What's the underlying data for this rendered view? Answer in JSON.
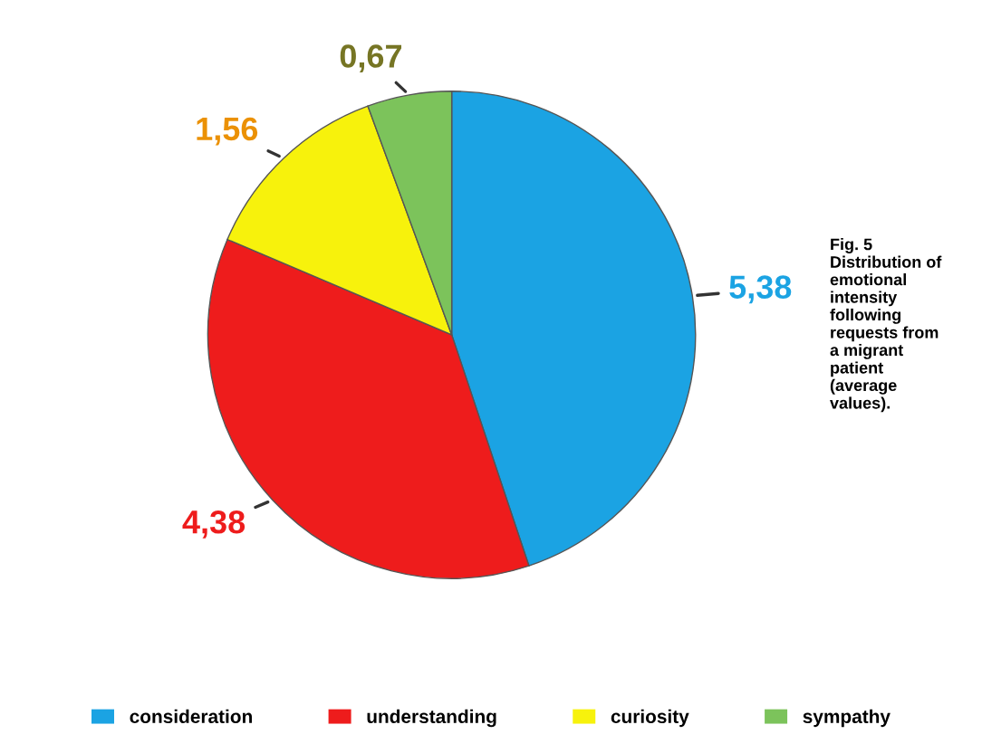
{
  "chart_data": {
    "type": "pie",
    "categories": [
      "consideration",
      "understanding",
      "curiosity",
      "sympathy"
    ],
    "values": [
      5.38,
      4.38,
      1.56,
      0.67
    ],
    "value_labels": [
      "5,38",
      "4,38",
      "1,56",
      "0,67"
    ],
    "colors": [
      "#1ba3e3",
      "#ee1c1c",
      "#f7f20c",
      "#7cc35b"
    ],
    "legend": "bottom",
    "annotations": [
      "Fig. 5\nDistribution of\nemotional\nintensity\nfollowing\nrequests from\na migrant\npatient\n(average\nvalues)."
    ]
  }
}
